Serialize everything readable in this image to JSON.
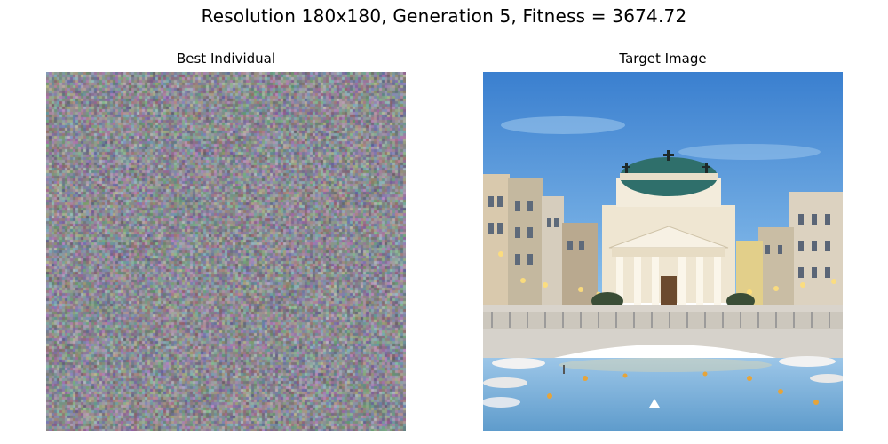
{
  "figure": {
    "suptitle": "Resolution 180x180, Generation 5, Fitness = 3674.72"
  },
  "panels": [
    {
      "title": "Best Individual",
      "content": "random-noise-image"
    },
    {
      "title": "Target Image",
      "content": "photo-church-canal-bridge"
    }
  ],
  "colors": {
    "noise_base": "#8c8a8f",
    "sky_top": "#3f86d4",
    "sky_bottom": "#7eb8ea",
    "water": "#6fa9d8",
    "dome": "#2f6f6b",
    "facade": "#f3ead7"
  }
}
